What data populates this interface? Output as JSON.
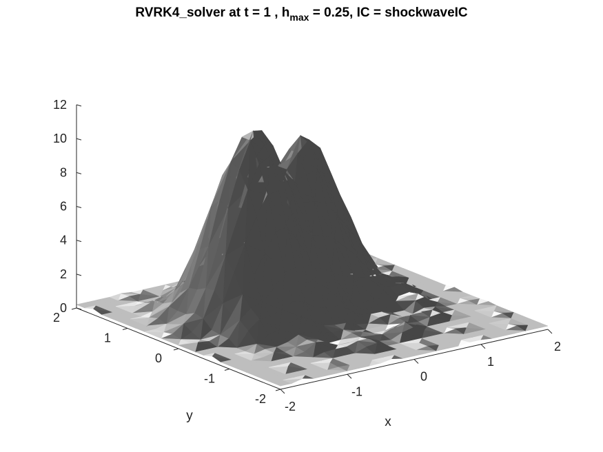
{
  "chart_data": {
    "type": "surface",
    "title": {
      "prefix": "RVRK4_solver at t = 1 , h",
      "subscript": "max",
      "suffix": " = 0.25, IC = shockwaveIC"
    },
    "xlabel": "x",
    "ylabel": "y",
    "zlabel": "",
    "xlim": [
      -2,
      2
    ],
    "ylim": [
      -2,
      2
    ],
    "zlim": [
      0,
      12
    ],
    "xticks": [
      -2,
      -1,
      0,
      1,
      2
    ],
    "yticks": [
      -2,
      -1,
      0,
      1,
      2
    ],
    "zticks": [
      0,
      2,
      4,
      6,
      8,
      10,
      12
    ],
    "grid": false,
    "colormap": "gray",
    "surface": {
      "description_free": true,
      "peak_value": 10.9,
      "peak_center": [
        -0.6,
        0.4
      ],
      "ridge_end_value": 9.2,
      "ridge_end_center": [
        0.4,
        0.6
      ],
      "base_value": 0.2
    }
  },
  "colors": {
    "axis": "#262626",
    "background": "#ffffff",
    "surface_dark": "#4a4a4a",
    "surface_light": "#f4f4f4"
  }
}
